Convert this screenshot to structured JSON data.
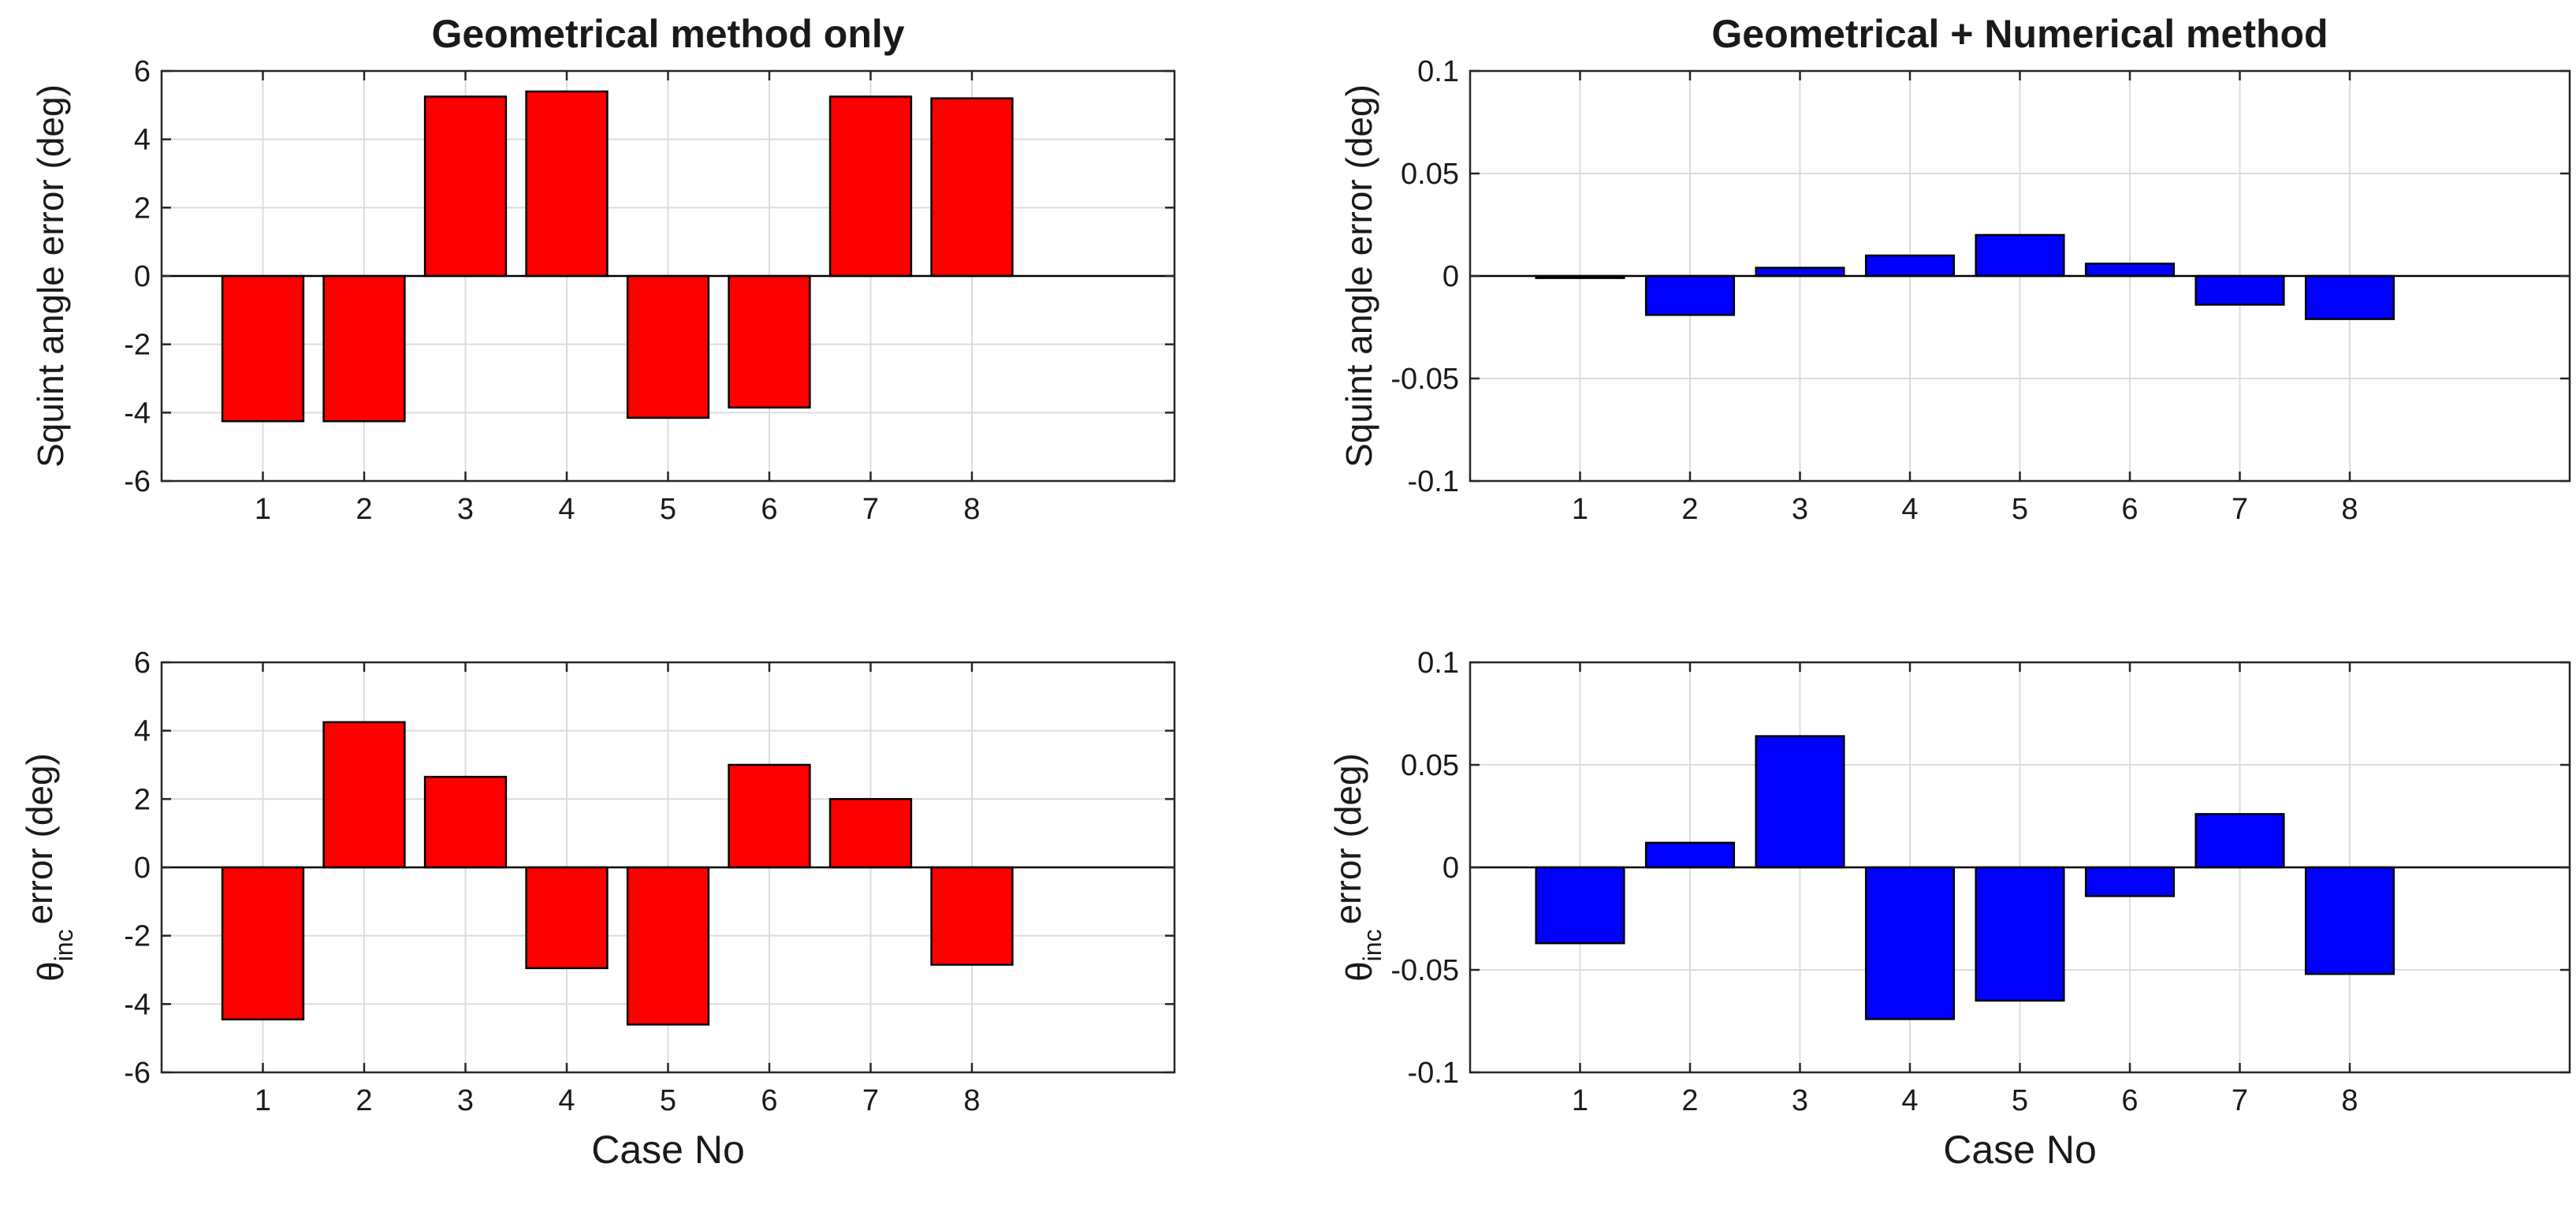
{
  "figure": {
    "xlabel_common": "Case No"
  },
  "chart_data": [
    {
      "type": "bar",
      "title": "Geometrical method only",
      "xlabel": "",
      "ylabel": "Squint angle error (deg)",
      "ylabel_parts": null,
      "categories": [
        "1",
        "2",
        "3",
        "4",
        "5",
        "6",
        "7",
        "8"
      ],
      "values": [
        -4.25,
        -4.25,
        5.25,
        5.4,
        -4.15,
        -3.85,
        5.25,
        5.2
      ],
      "ylim": [
        -6,
        6
      ],
      "yticks": [
        -6,
        -4,
        -2,
        0,
        2,
        4,
        6
      ],
      "ytick_labels": [
        "-6",
        "-4",
        "-2",
        "0",
        "2",
        "4",
        "6"
      ],
      "grid": true,
      "bar_color": "#ff0000"
    },
    {
      "type": "bar",
      "title": "Geometrical + Numerical method",
      "xlabel": "",
      "ylabel": "Squint angle error (deg)",
      "ylabel_parts": null,
      "categories": [
        "1",
        "2",
        "3",
        "4",
        "5",
        "6",
        "7",
        "8"
      ],
      "values": [
        -0.001,
        -0.019,
        0.004,
        0.01,
        0.02,
        0.006,
        -0.014,
        -0.021
      ],
      "ylim": [
        -0.1,
        0.1
      ],
      "yticks": [
        -0.1,
        -0.05,
        0,
        0.05,
        0.1
      ],
      "ytick_labels": [
        "-0.1",
        "-0.05",
        "0",
        "0.05",
        "0.1"
      ],
      "grid": true,
      "bar_color": "#0000ff"
    },
    {
      "type": "bar",
      "title": "",
      "xlabel": "Case No",
      "ylabel": "θinc error (deg)",
      "ylabel_parts": {
        "symbol": "θ",
        "sub": "inc",
        "rest": "error (deg)"
      },
      "categories": [
        "1",
        "2",
        "3",
        "4",
        "5",
        "6",
        "7",
        "8"
      ],
      "values": [
        -4.45,
        4.25,
        2.65,
        -2.95,
        -4.6,
        3.0,
        2.0,
        -2.85
      ],
      "ylim": [
        -6,
        6
      ],
      "yticks": [
        -6,
        -4,
        -2,
        0,
        2,
        4,
        6
      ],
      "ytick_labels": [
        "-6",
        "-4",
        "-2",
        "0",
        "2",
        "4",
        "6"
      ],
      "grid": true,
      "bar_color": "#ff0000"
    },
    {
      "type": "bar",
      "title": "",
      "xlabel": "Case No",
      "ylabel": "θinc error (deg)",
      "ylabel_parts": {
        "symbol": "θ",
        "sub": "inc",
        "rest": "error (deg)"
      },
      "categories": [
        "1",
        "2",
        "3",
        "4",
        "5",
        "6",
        "7",
        "8"
      ],
      "values": [
        -0.037,
        0.012,
        0.064,
        -0.074,
        -0.065,
        -0.014,
        0.026,
        -0.052
      ],
      "ylim": [
        -0.1,
        0.1
      ],
      "yticks": [
        -0.1,
        -0.05,
        0,
        0.05,
        0.1
      ],
      "ytick_labels": [
        "-0.1",
        "-0.05",
        "0",
        "0.05",
        "0.1"
      ],
      "grid": true,
      "bar_color": "#0000ff"
    }
  ]
}
